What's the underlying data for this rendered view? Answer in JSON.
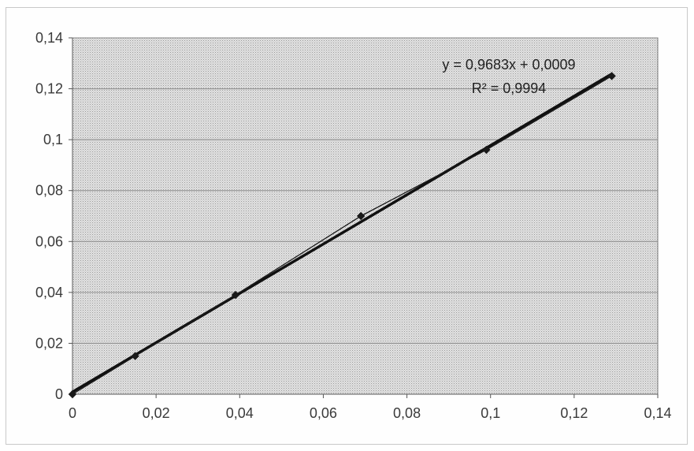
{
  "chart_data": {
    "type": "scatter",
    "title": "",
    "xlabel": "",
    "ylabel": "",
    "xlim": [
      0,
      0.14
    ],
    "ylim": [
      0,
      0.14
    ],
    "grid": true,
    "x_ticks": [
      0,
      0.02,
      0.04,
      0.06,
      0.08,
      0.1,
      0.12,
      0.14
    ],
    "y_ticks": [
      0,
      0.02,
      0.04,
      0.06,
      0.08,
      0.1,
      0.12,
      0.14
    ],
    "x_tick_labels": [
      "0",
      "0,02",
      "0,04",
      "0,06",
      "0,08",
      "0,1",
      "0,12",
      "0,14"
    ],
    "y_tick_labels": [
      "0",
      "0,02",
      "0,04",
      "0,06",
      "0,08",
      "0,1",
      "0,12",
      "0,14"
    ],
    "series": [
      {
        "x": [
          0,
          0.015,
          0.039,
          0.069,
          0.099,
          0.129
        ],
        "y": [
          0,
          0.015,
          0.039,
          0.07,
          0.096,
          0.125
        ],
        "marker": "diamond",
        "connected": true,
        "color": "#1a1a1a"
      }
    ],
    "trendline": {
      "slope": 0.9683,
      "intercept": 0.0009,
      "color": "#111111"
    },
    "annotation": {
      "equation": "y = 0,9683x + 0,0009",
      "r_squared": "R² = 0,9994"
    },
    "colors": {
      "plot_background": "#d6d6d6",
      "gridline": "#8a8a8a"
    }
  }
}
